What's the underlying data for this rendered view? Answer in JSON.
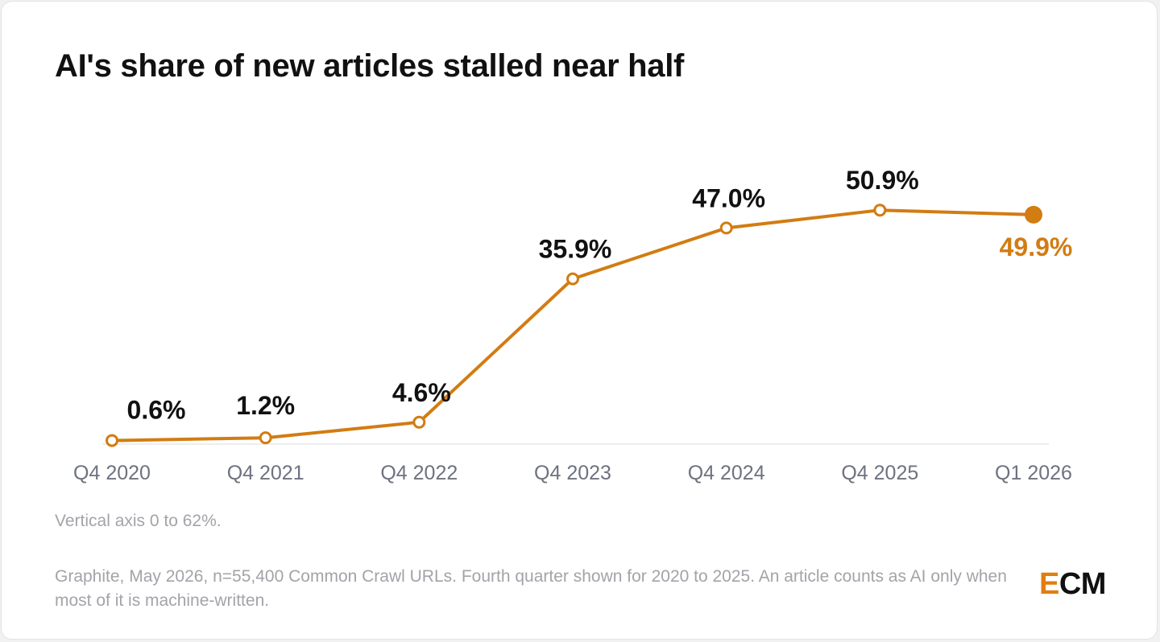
{
  "title": "AI's share of new articles stalled near half",
  "note": "Vertical axis 0 to 62%.",
  "source": "Graphite, May 2026, n=55,400 Common Crawl URLs. Fourth quarter shown for 2020 to 2025. An article counts as AI only when most of it is machine-written.",
  "logo": {
    "accent": "E",
    "rest": "CM"
  },
  "colors": {
    "line": "#d27c12",
    "highlight": "#d27c12",
    "label": "#111111",
    "axis_text": "#6e7280",
    "baseline": "#eeeeee"
  },
  "chart_data": {
    "type": "line",
    "categories": [
      "Q4 2020",
      "Q4 2021",
      "Q4 2022",
      "Q4 2023",
      "Q4 2024",
      "Q4 2025",
      "Q1 2026"
    ],
    "values": [
      0.6,
      1.2,
      4.6,
      35.9,
      47.0,
      50.9,
      49.9
    ],
    "data_labels": [
      "0.6%",
      "1.2%",
      "4.6%",
      "35.9%",
      "47.0%",
      "50.9%",
      "49.9%"
    ],
    "ylim": [
      0,
      62
    ],
    "highlight_index": 6,
    "xlabel": "",
    "ylabel": "",
    "grid": false
  }
}
